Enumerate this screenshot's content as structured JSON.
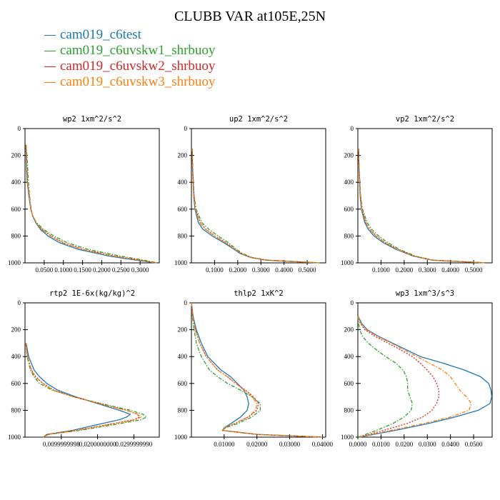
{
  "title": "CLUBB VAR at105E,25N",
  "legend": [
    {
      "label": "cam019_c6test",
      "color": "#1f77b4",
      "dash": "solid"
    },
    {
      "label": "cam019_c6uvskw1_shrbuoy",
      "color": "#2ca02c",
      "dash": "dashdot"
    },
    {
      "label": "cam019_c6uvskw2_shrbuoy",
      "color": "#d62728",
      "dash": "dotted"
    },
    {
      "label": "cam019_c6uvskw3_shrbuoy",
      "color": "#ff7f0e",
      "dash": "dashdot"
    }
  ],
  "chart_data": [
    {
      "type": "line",
      "title": "wp2  1xm^2/s^2",
      "xlim": [
        0,
        0.35
      ],
      "ylim": [
        1000,
        0
      ],
      "xticks": [
        0.05,
        0.1,
        0.15,
        0.2,
        0.25,
        0.3
      ],
      "xtick_labels": [
        "0.0500",
        "0.1000",
        "0.1500",
        "0.2000",
        "0.2500",
        "0.3000"
      ],
      "yticks": [
        0,
        200,
        400,
        600,
        800,
        1000
      ],
      "y": [
        120,
        200,
        300,
        400,
        500,
        600,
        650,
        700,
        750,
        800,
        850,
        900,
        950,
        980,
        1000
      ],
      "series": [
        {
          "values": [
            0.002,
            0.003,
            0.004,
            0.006,
            0.01,
            0.015,
            0.02,
            0.028,
            0.04,
            0.06,
            0.09,
            0.14,
            0.22,
            0.29,
            0.34
          ]
        },
        {
          "values": [
            0.003,
            0.005,
            0.007,
            0.009,
            0.012,
            0.016,
            0.02,
            0.03,
            0.048,
            0.075,
            0.11,
            0.165,
            0.25,
            0.31,
            0.345
          ]
        },
        {
          "values": [
            0.002,
            0.004,
            0.005,
            0.007,
            0.011,
            0.015,
            0.02,
            0.029,
            0.044,
            0.068,
            0.1,
            0.152,
            0.235,
            0.3,
            0.342
          ]
        },
        {
          "values": [
            0.002,
            0.004,
            0.005,
            0.007,
            0.011,
            0.015,
            0.02,
            0.029,
            0.043,
            0.066,
            0.098,
            0.15,
            0.232,
            0.298,
            0.342
          ]
        }
      ]
    },
    {
      "type": "line",
      "title": "up2  1xm^2/s^2",
      "xlim": [
        0,
        0.58
      ],
      "ylim": [
        1000,
        0
      ],
      "xticks": [
        0.1,
        0.2,
        0.3,
        0.4,
        0.5
      ],
      "xtick_labels": [
        "0.1000",
        "0.2000",
        "0.3000",
        "0.4000",
        "0.5000"
      ],
      "yticks": [
        0,
        200,
        400,
        600,
        800,
        1000
      ],
      "y": [
        150,
        300,
        500,
        600,
        700,
        750,
        800,
        850,
        900,
        930,
        960,
        980,
        1000
      ],
      "series": [
        {
          "values": [
            0.003,
            0.005,
            0.01,
            0.015,
            0.03,
            0.05,
            0.09,
            0.14,
            0.185,
            0.21,
            0.255,
            0.32,
            0.55
          ]
        },
        {
          "values": [
            0.003,
            0.006,
            0.012,
            0.02,
            0.045,
            0.075,
            0.115,
            0.16,
            0.195,
            0.22,
            0.262,
            0.33,
            0.555
          ]
        },
        {
          "values": [
            0.003,
            0.005,
            0.011,
            0.018,
            0.038,
            0.062,
            0.102,
            0.15,
            0.19,
            0.215,
            0.258,
            0.325,
            0.552
          ]
        },
        {
          "values": [
            0.003,
            0.005,
            0.011,
            0.017,
            0.036,
            0.06,
            0.1,
            0.148,
            0.189,
            0.214,
            0.257,
            0.324,
            0.552
          ]
        }
      ]
    },
    {
      "type": "line",
      "title": "vp2  1xm^2/s^2",
      "xlim": [
        0,
        0.58
      ],
      "ylim": [
        1000,
        0
      ],
      "xticks": [
        0.1,
        0.2,
        0.3,
        0.4,
        0.5
      ],
      "xtick_labels": [
        "0.1000",
        "0.2000",
        "0.3000",
        "0.4000",
        "0.5000"
      ],
      "yticks": [
        0,
        200,
        400,
        600,
        800,
        1000
      ],
      "y": [
        150,
        300,
        500,
        600,
        700,
        750,
        800,
        850,
        900,
        950,
        980,
        1000
      ],
      "series": [
        {
          "values": [
            0.003,
            0.005,
            0.01,
            0.015,
            0.03,
            0.045,
            0.07,
            0.11,
            0.165,
            0.24,
            0.32,
            0.55
          ]
        },
        {
          "values": [
            0.003,
            0.006,
            0.012,
            0.02,
            0.04,
            0.06,
            0.09,
            0.13,
            0.18,
            0.25,
            0.325,
            0.555
          ]
        },
        {
          "values": [
            0.003,
            0.005,
            0.011,
            0.018,
            0.035,
            0.052,
            0.08,
            0.12,
            0.172,
            0.245,
            0.322,
            0.552
          ]
        },
        {
          "values": [
            0.003,
            0.005,
            0.011,
            0.017,
            0.034,
            0.051,
            0.078,
            0.118,
            0.171,
            0.244,
            0.322,
            0.552
          ]
        }
      ]
    },
    {
      "type": "line",
      "title": "rtp2  1E-6x(kg/kg)^2",
      "xlim": [
        0,
        0.037
      ],
      "ylim": [
        1000,
        0
      ],
      "xticks": [
        0.01,
        0.02,
        0.03
      ],
      "xtick_labels": [
        "0.0099999998",
        "0.0200000000",
        "0.0299999990"
      ],
      "yticks": [
        0,
        200,
        400,
        600,
        800,
        1000
      ],
      "y": [
        300,
        400,
        500,
        550,
        600,
        650,
        700,
        750,
        800,
        830,
        850,
        870,
        900,
        950,
        980,
        1000
      ],
      "series": [
        {
          "values": [
            0.0003,
            0.001,
            0.0025,
            0.004,
            0.006,
            0.009,
            0.014,
            0.02,
            0.026,
            0.029,
            0.028,
            0.026,
            0.021,
            0.013,
            0.006,
            0.005
          ]
        },
        {
          "values": [
            0.0002,
            0.0006,
            0.0015,
            0.0025,
            0.004,
            0.0075,
            0.0135,
            0.021,
            0.029,
            0.0325,
            0.0335,
            0.032,
            0.026,
            0.015,
            0.0065,
            0.005
          ]
        },
        {
          "values": [
            0.0002,
            0.0007,
            0.0018,
            0.003,
            0.005,
            0.008,
            0.0135,
            0.0205,
            0.028,
            0.031,
            0.0315,
            0.03,
            0.024,
            0.014,
            0.0062,
            0.005
          ]
        },
        {
          "values": [
            0.0002,
            0.0007,
            0.0017,
            0.0028,
            0.0048,
            0.0078,
            0.0133,
            0.0205,
            0.0278,
            0.0312,
            0.032,
            0.0305,
            0.0245,
            0.0142,
            0.0063,
            0.005
          ]
        }
      ]
    },
    {
      "type": "line",
      "title": "thlp2  1xK^2",
      "xlim": [
        0,
        0.041
      ],
      "ylim": [
        1000,
        0
      ],
      "xticks": [
        0.01,
        0.02,
        0.03,
        0.04
      ],
      "xtick_labels": [
        "0.01000",
        "0.02000",
        "0.03000",
        "0.04000"
      ],
      "yticks": [
        0,
        200,
        400,
        600,
        800,
        1000
      ],
      "y": [
        0,
        100,
        200,
        300,
        400,
        500,
        550,
        600,
        650,
        700,
        750,
        800,
        850,
        900,
        930,
        950,
        980,
        1000
      ],
      "series": [
        {
          "values": [
            0.0,
            0.0005,
            0.0015,
            0.003,
            0.005,
            0.009,
            0.012,
            0.014,
            0.016,
            0.017,
            0.0175,
            0.017,
            0.015,
            0.012,
            0.01,
            0.0095,
            0.02,
            0.04
          ]
        },
        {
          "values": [
            0.0,
            0.0003,
            0.0008,
            0.0015,
            0.003,
            0.0055,
            0.008,
            0.011,
            0.015,
            0.0185,
            0.021,
            0.021,
            0.0185,
            0.014,
            0.0105,
            0.0095,
            0.02,
            0.04
          ]
        },
        {
          "values": [
            0.0,
            0.0004,
            0.0012,
            0.0025,
            0.0045,
            0.008,
            0.011,
            0.0135,
            0.0165,
            0.019,
            0.0205,
            0.02,
            0.0175,
            0.0132,
            0.0102,
            0.0095,
            0.02,
            0.04
          ]
        },
        {
          "values": [
            0.0,
            0.0004,
            0.0012,
            0.0025,
            0.0045,
            0.008,
            0.011,
            0.0135,
            0.0162,
            0.0185,
            0.02,
            0.0196,
            0.0172,
            0.013,
            0.0101,
            0.0095,
            0.02,
            0.04
          ]
        }
      ]
    },
    {
      "type": "line",
      "title": "wp3  1xm^3/s^3",
      "xlim": [
        0,
        0.058
      ],
      "ylim": [
        1000,
        0
      ],
      "xticks": [
        0,
        0.01,
        0.02,
        0.03,
        0.04,
        0.05
      ],
      "xtick_labels": [
        "0.0000",
        "0.0100",
        "0.0200",
        "0.0300",
        "0.0400",
        "0.0500"
      ],
      "yticks": [
        0,
        200,
        400,
        600,
        800,
        1000
      ],
      "y": [
        100,
        150,
        200,
        250,
        300,
        350,
        400,
        450,
        500,
        550,
        600,
        650,
        700,
        750,
        800,
        850,
        900,
        950,
        1000
      ],
      "series": [
        {
          "values": [
            0.0002,
            0.0015,
            0.004,
            0.009,
            0.015,
            0.021,
            0.027,
            0.037,
            0.046,
            0.053,
            0.0565,
            0.0575,
            0.0578,
            0.057,
            0.052,
            0.042,
            0.03,
            0.016,
            0.0005
          ]
        },
        {
          "values": [
            0.0,
            0.0003,
            0.0008,
            0.002,
            0.0045,
            0.008,
            0.012,
            0.0165,
            0.0195,
            0.021,
            0.0215,
            0.0215,
            0.0225,
            0.0235,
            0.023,
            0.02,
            0.015,
            0.008,
            0.0002
          ]
        },
        {
          "values": [
            0.0002,
            0.001,
            0.003,
            0.0075,
            0.013,
            0.0185,
            0.0235,
            0.027,
            0.03,
            0.0325,
            0.034,
            0.035,
            0.035,
            0.034,
            0.032,
            0.028,
            0.021,
            0.011,
            0.0003
          ]
        },
        {
          "values": [
            0.0002,
            0.0012,
            0.0035,
            0.0085,
            0.0145,
            0.02,
            0.0255,
            0.031,
            0.0365,
            0.04,
            0.042,
            0.044,
            0.047,
            0.049,
            0.048,
            0.04,
            0.028,
            0.014,
            0.0004
          ]
        }
      ]
    }
  ]
}
